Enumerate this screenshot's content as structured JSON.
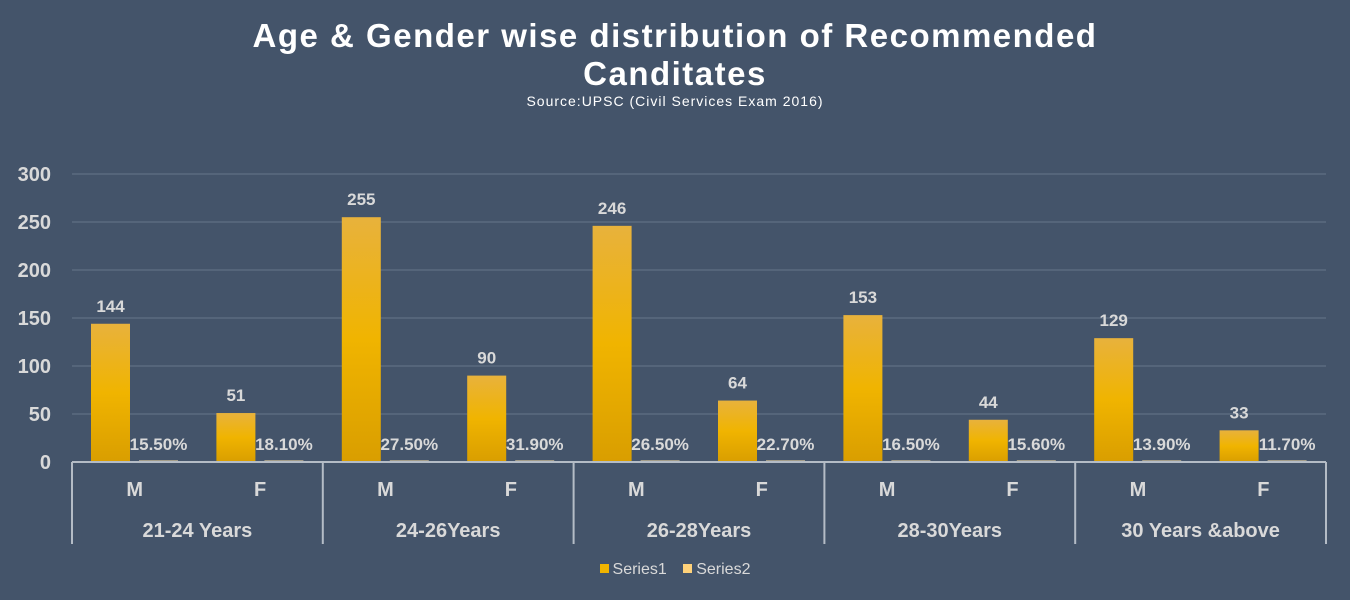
{
  "chart_data": {
    "type": "bar",
    "title": "Age & Gender wise distribution of Recommended Canditates",
    "title_lines": [
      "Age & Gender wise distribution of Recommended",
      "Canditates"
    ],
    "subtitle": "Source:UPSC (Civil Services Exam 2016)",
    "groups": [
      "21-24 Years",
      "24-26Years",
      "26-28Years",
      "28-30Years",
      "30 Years &above"
    ],
    "categories": [
      "M",
      "F",
      "M",
      "F",
      "M",
      "F",
      "M",
      "F",
      "M",
      "F"
    ],
    "series": [
      {
        "name": "Series1",
        "color": "#f0b400",
        "values": [
          144,
          51,
          255,
          90,
          246,
          64,
          153,
          44,
          129,
          33
        ],
        "labels": [
          "144",
          "51",
          "255",
          "90",
          "246",
          "64",
          "153",
          "44",
          "129",
          "33"
        ]
      },
      {
        "name": "Series2",
        "color": "#ffd27a",
        "values": [
          0.155,
          0.181,
          0.275,
          0.319,
          0.265,
          0.227,
          0.165,
          0.156,
          0.139,
          0.117
        ],
        "labels": [
          "15.50%",
          "18.10%",
          "27.50%",
          "31.90%",
          "26.50%",
          "22.70%",
          "16.50%",
          "15.60%",
          "13.90%",
          "11.70%"
        ]
      }
    ],
    "yticks": [
      "0",
      "50",
      "100",
      "150",
      "200",
      "250",
      "300"
    ],
    "ylim": [
      0,
      300
    ],
    "grid": true,
    "legend": "bottom"
  }
}
